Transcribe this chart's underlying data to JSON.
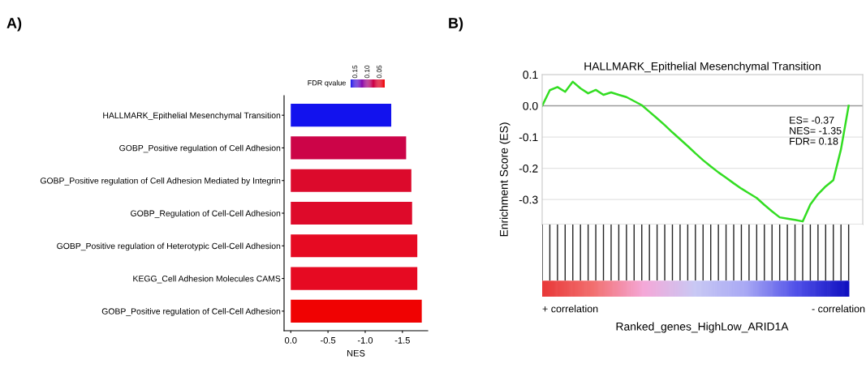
{
  "chart_data": [
    {
      "type": "bar",
      "orientation": "horizontal",
      "annotations": [
        "A)"
      ],
      "categories": [
        "HALLMARK_Epithelial Mesenchymal Transition",
        "GOBP_Positive regulation of Cell Adhesion",
        "GOBP_Positive regulation of Cell Adhesion Mediated by Integrin",
        "GOBP_Regulation of Cell-Cell Adhesion",
        "GOBP_Positive regulation of Heterotypic Cell-Cell Adhesion",
        "KEGG_Cell Adhesion Molecules CAMS",
        "GOBP_Positive regulation of Cell-Cell Adhesion"
      ],
      "values": [
        -1.35,
        -1.55,
        -1.62,
        -1.63,
        -1.7,
        -1.7,
        -1.76
      ],
      "colors": [
        "#1212ee",
        "#cc0448",
        "#dc0a2c",
        "#de0a2a",
        "#e60a22",
        "#e60a22",
        "#f00202"
      ],
      "xlim": [
        0.09,
        -1.84
      ],
      "xticks": [
        {
          "value": 0,
          "label": "0.0"
        },
        {
          "value": -0.5,
          "label": "-0.5"
        },
        {
          "value": -1.0,
          "label": "-1.0"
        },
        {
          "value": -1.5,
          "label": "-1.5"
        }
      ],
      "xlabel": "NES",
      "clabel": "FDR qvalue",
      "clim": [
        0.17,
        0.03
      ],
      "cticks": [
        {
          "value": 0.15,
          "label": "0.15"
        },
        {
          "value": 0.1,
          "label": "0.10"
        },
        {
          "value": 0.05,
          "label": "0.05"
        }
      ],
      "grid": false
    },
    {
      "type": "line",
      "title": "HALLMARK_Epithelial Mesenchymal Transition",
      "ylabel": "Enrichment Score (ES)",
      "xlabel": "Ranked_genes_HighLow_ARID1A",
      "annotations": [
        "ES= -0.37",
        "NES= -1.35",
        "FDR= 0.18",
        "+ correlation",
        "- correlation",
        "B)"
      ],
      "categories": [
        null,
        null,
        null,
        null,
        null,
        null,
        null,
        null,
        null,
        null,
        null,
        null,
        null,
        null,
        null,
        null,
        null,
        null,
        null,
        null,
        null,
        null,
        null,
        null,
        null,
        null,
        null,
        null,
        null,
        null,
        null,
        null,
        null,
        null,
        null,
        null,
        null,
        null,
        null,
        null,
        null
      ],
      "series": [
        {
          "color": "#33dd22",
          "values": [
            0.0,
            0.05,
            0.06,
            0.045,
            0.077,
            0.056,
            0.04,
            0.051,
            0.035,
            0.043,
            0.035,
            0.028,
            0.015,
            0.002,
            -0.019,
            -0.04,
            -0.062,
            -0.085,
            -0.107,
            -0.129,
            -0.152,
            -0.174,
            -0.194,
            -0.213,
            -0.23,
            -0.248,
            -0.265,
            -0.28,
            -0.295,
            -0.317,
            -0.338,
            -0.357,
            -0.361,
            -0.365,
            -0.37,
            -0.316,
            -0.283,
            -0.258,
            -0.238,
            -0.139,
            0.0
          ]
        }
      ],
      "ylim": [
        -0.38,
        0.1
      ],
      "yticks": [
        {
          "value": 0.1,
          "label": "0.1"
        },
        {
          "value": 0.0,
          "label": "0.0"
        },
        {
          "value": -0.1,
          "label": "-0.1"
        },
        {
          "value": -0.2,
          "label": "-0.2"
        },
        {
          "value": -0.3,
          "label": "-0.3"
        }
      ],
      "tick_labels": "y",
      "grid": "y",
      "ref_lines": [
        {
          "axis": "y",
          "value": 0,
          "color": "#9a9a9a"
        }
      ]
    }
  ]
}
